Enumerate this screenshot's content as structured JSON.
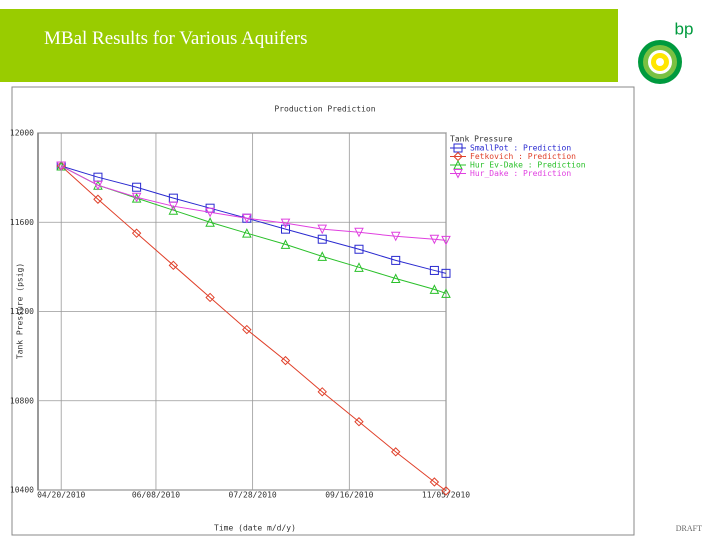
{
  "slide": {
    "title": "MBal Results for Various Aquifers",
    "logo_text": "bp",
    "footer": "DRAFT"
  },
  "chart_data": {
    "type": "line",
    "title": "Production Prediction",
    "x_label": "Time (date m/d/y)",
    "y_label": "Tank Pressure (psig)",
    "legend_title": "Tank Pressure",
    "x": [
      0,
      19,
      39,
      58,
      77,
      96,
      116,
      135,
      154,
      173,
      193,
      199
    ],
    "xlim": [
      -12,
      199
    ],
    "xticks": [
      {
        "value": 0,
        "label": "04/20/2010"
      },
      {
        "value": 49,
        "label": "06/08/2010"
      },
      {
        "value": 99,
        "label": "07/28/2010"
      },
      {
        "value": 149,
        "label": "09/16/2010"
      },
      {
        "value": 199,
        "label": "11/05/2010"
      }
    ],
    "ylim": [
      10400,
      12000
    ],
    "yticks": [
      10400,
      10800,
      11200,
      11600,
      12000
    ],
    "grid": true,
    "series": [
      {
        "name": "SmallPot : Prediction",
        "color": "#2a2ad0",
        "marker": "square",
        "values": [
          11852,
          11802,
          11757,
          11708,
          11663,
          11618,
          11569,
          11524,
          11479,
          11429,
          11384,
          11371
        ]
      },
      {
        "name": "Fetkovich : Prediction",
        "color": "#e0402a",
        "marker": "diamond",
        "values": [
          11852,
          11703,
          11551,
          11407,
          11263,
          11119,
          10980,
          10840,
          10706,
          10571,
          10436,
          10396
        ]
      },
      {
        "name": "Hur Ev-Dake : Prediction",
        "color": "#2ac02a",
        "marker": "triangle",
        "values": [
          11852,
          11766,
          11708,
          11654,
          11600,
          11551,
          11501,
          11447,
          11398,
          11348,
          11299,
          11281
        ]
      },
      {
        "name": "Hur_Dake : Prediction",
        "color": "#e040e0",
        "marker": "triangle-down",
        "values": [
          11852,
          11766,
          11712,
          11672,
          11645,
          11618,
          11596,
          11569,
          11555,
          11537,
          11524,
          11519
        ]
      }
    ]
  }
}
